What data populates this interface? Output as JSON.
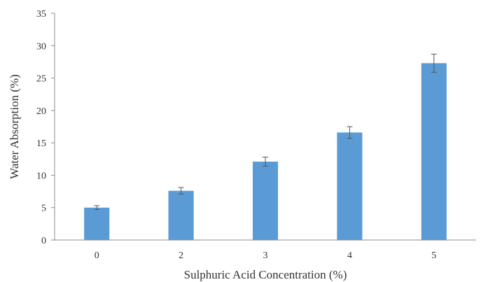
{
  "chart_data": {
    "type": "bar",
    "categories": [
      "0",
      "2",
      "3",
      "4",
      "5"
    ],
    "values": [
      5.0,
      7.6,
      12.1,
      16.6,
      27.3
    ],
    "errors": [
      0.3,
      0.5,
      0.7,
      0.9,
      1.4
    ],
    "xlabel": "Sulphuric Acid Concentration (%)",
    "ylabel": "Water Absorption (%)",
    "ylim": [
      0,
      35
    ],
    "yticks": [
      "0",
      "5",
      "10",
      "15",
      "20",
      "25",
      "30",
      "35"
    ],
    "grid": false,
    "bar_color": "#5b9bd5",
    "error_bar_color": "#555555"
  }
}
